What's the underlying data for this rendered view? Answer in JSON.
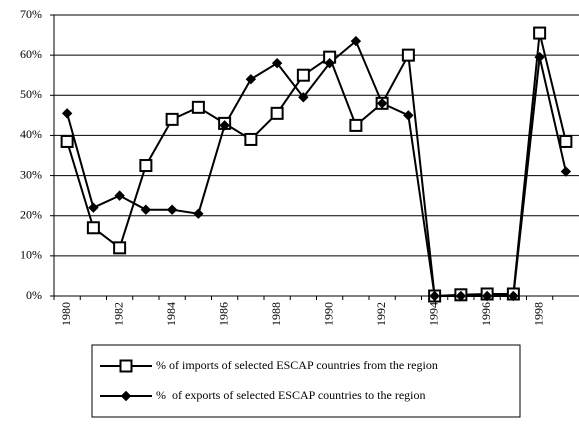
{
  "chart_data": {
    "type": "line",
    "categories": [
      "1980",
      null,
      "1982",
      null,
      "1984",
      null,
      "1986",
      null,
      "1988",
      null,
      "1990",
      null,
      "1992",
      null,
      "1994",
      null,
      "1996",
      null,
      "1998",
      null
    ],
    "series": [
      {
        "name": "% of imports of selected ESCAP countries from the region",
        "color": "#000000",
        "marker": "square",
        "values": [
          38.5,
          17,
          12,
          32.5,
          44,
          47,
          43,
          39,
          45.5,
          55,
          59.5,
          42.5,
          48,
          60,
          0,
          0.3,
          0.5,
          0.5,
          65.5,
          38.5
        ]
      },
      {
        "name": "%  of exports of selected ESCAP countries to the region",
        "color": "#000000",
        "marker": "diamond",
        "values": [
          45.5,
          22,
          25,
          21.5,
          21.5,
          20.5,
          42.5,
          54,
          58,
          49.5,
          58,
          63.5,
          48,
          45,
          0,
          0,
          0,
          0,
          59.5,
          31
        ]
      }
    ],
    "ylim": [
      0,
      70
    ],
    "yticks": [
      {
        "value": 0,
        "label": "0%"
      },
      {
        "value": 10,
        "label": "10%"
      },
      {
        "value": 20,
        "label": "20%"
      },
      {
        "value": 30,
        "label": "30%"
      },
      {
        "value": 40,
        "label": "40%"
      },
      {
        "value": 50,
        "label": "50%"
      },
      {
        "value": 60,
        "label": "60%"
      },
      {
        "value": 70,
        "label": "70%"
      }
    ],
    "grid": true,
    "legend": "bottom"
  }
}
